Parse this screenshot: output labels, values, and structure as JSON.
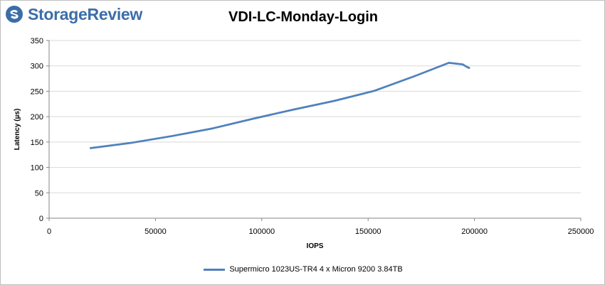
{
  "logo": {
    "text": "StorageReview",
    "color": "#3b6ea8"
  },
  "chart_data": {
    "type": "line",
    "title": "VDI-LC-Monday-Login",
    "xlabel": "IOPS",
    "ylabel": "Latency (µs)",
    "xlim": [
      0,
      250000
    ],
    "ylim": [
      0,
      350
    ],
    "xticks": [
      0,
      50000,
      100000,
      150000,
      200000,
      250000
    ],
    "yticks": [
      0,
      50,
      100,
      150,
      200,
      250,
      300,
      350
    ],
    "xtick_labels": [
      "0",
      "50000",
      "100000",
      "150000",
      "200000",
      "250000"
    ],
    "ytick_labels": [
      "0",
      "50",
      "100",
      "150",
      "200",
      "250",
      "300",
      "350"
    ],
    "grid": "horizontal",
    "legend_position": "bottom",
    "series": [
      {
        "name": "Supermicro 1023US-TR4 4 x Micron 9200 3.84TB",
        "color": "#4f81bd",
        "points": [
          [
            19500,
            138
          ],
          [
            38000,
            148
          ],
          [
            58000,
            162
          ],
          [
            77000,
            177
          ],
          [
            96000,
            196
          ],
          [
            115000,
            214
          ],
          [
            134000,
            231
          ],
          [
            153000,
            251
          ],
          [
            172000,
            280
          ],
          [
            188000,
            306
          ],
          [
            194500,
            303
          ],
          [
            196000,
            299
          ],
          [
            197500,
            296
          ]
        ]
      }
    ]
  }
}
